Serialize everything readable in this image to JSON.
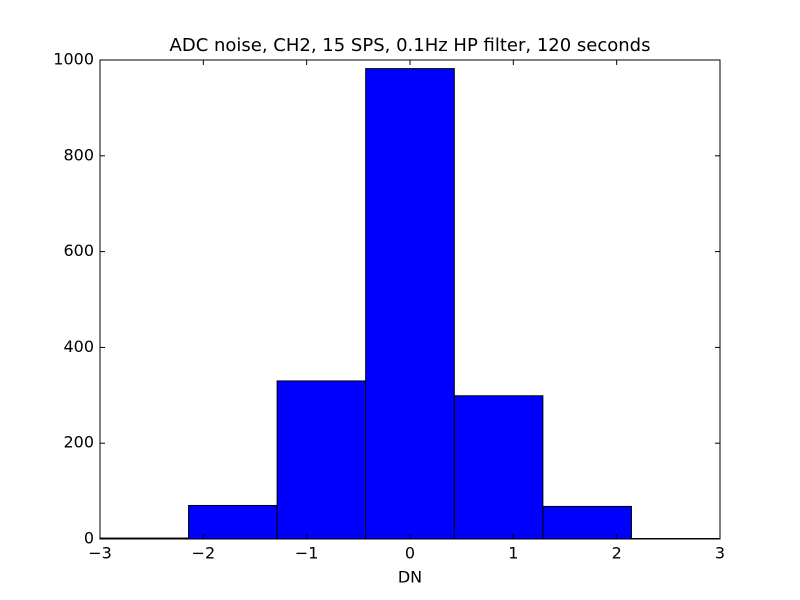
{
  "chart_data": {
    "type": "histogram",
    "title": "ADC noise, CH2, 15 SPS, 0.1Hz HP filter, 120 seconds",
    "x_label": "DN",
    "bins": [
      -3,
      -2.143,
      -1.286,
      -0.429,
      0.429,
      1.286,
      2.143,
      3
    ],
    "values": [
      2,
      70,
      330,
      982,
      299,
      68,
      1
    ],
    "color": "#0000ff",
    "xlim": [
      -3,
      3
    ],
    "xticks": [
      {
        "value": -3,
        "label": "−3"
      },
      {
        "value": -2,
        "label": "−2"
      },
      {
        "value": -1,
        "label": "−1"
      },
      0,
      1,
      2,
      3
    ],
    "ylim": [
      0,
      1000
    ],
    "yticks": [
      0,
      200,
      400,
      600,
      800,
      1000
    ],
    "grid": false
  }
}
